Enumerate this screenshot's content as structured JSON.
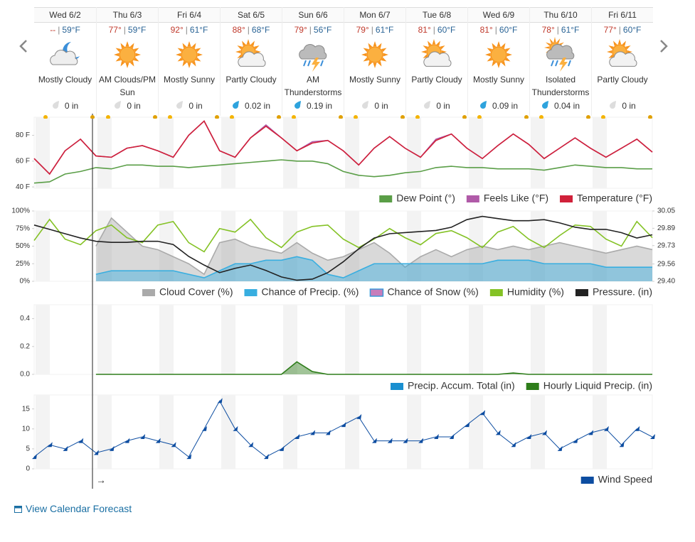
{
  "days": [
    {
      "date": "Wed 6/2",
      "hi": "--",
      "lo": "59°F",
      "condition": "Mostly Cloudy",
      "precip": "0 in"
    },
    {
      "date": "Thu 6/3",
      "hi": "77°",
      "lo": "59°F",
      "condition": "AM Clouds/PM Sun",
      "precip": "0 in"
    },
    {
      "date": "Fri 6/4",
      "hi": "92°",
      "lo": "61°F",
      "condition": "Mostly Sunny",
      "precip": "0 in"
    },
    {
      "date": "Sat 6/5",
      "hi": "88°",
      "lo": "68°F",
      "condition": "Partly Cloudy",
      "precip": "0.02 in"
    },
    {
      "date": "Sun 6/6",
      "hi": "79°",
      "lo": "56°F",
      "condition": "AM Thunderstorms",
      "precip": "0.19 in"
    },
    {
      "date": "Mon 6/7",
      "hi": "79°",
      "lo": "61°F",
      "condition": "Mostly Sunny",
      "precip": "0 in"
    },
    {
      "date": "Tue 6/8",
      "hi": "81°",
      "lo": "60°F",
      "condition": "Partly Cloudy",
      "precip": "0 in"
    },
    {
      "date": "Wed 6/9",
      "hi": "81°",
      "lo": "60°F",
      "condition": "Mostly Sunny",
      "precip": "0.09 in"
    },
    {
      "date": "Thu 6/10",
      "hi": "78°",
      "lo": "61°F",
      "condition": "Isolated Thunderstorms",
      "precip": "0.04 in"
    },
    {
      "date": "Fri 6/11",
      "hi": "77°",
      "lo": "60°F",
      "condition": "Partly Cloudy",
      "precip": "0 in"
    }
  ],
  "temp_separator": "|",
  "now_marker": "→",
  "link": "View Calendar Forecast",
  "chart_data": [
    {
      "type": "line",
      "ylim": [
        39,
        94
      ],
      "yticks": [
        {
          "value": 40,
          "label": "40 F"
        },
        {
          "value": 60,
          "label": "60 F"
        },
        {
          "value": 80,
          "label": "80 F"
        }
      ],
      "series": [
        {
          "name": "Dew Point (°)",
          "color": "#5a9e47",
          "values": [
            43,
            44,
            50,
            52,
            55,
            54,
            57,
            57,
            56,
            56,
            55,
            56,
            57,
            58,
            59,
            60,
            61,
            60,
            60,
            58,
            52,
            49,
            48,
            49,
            51,
            52,
            55,
            56,
            55,
            55,
            54,
            54,
            54,
            53,
            55,
            57,
            56,
            55,
            55,
            54,
            54
          ]
        },
        {
          "name": "Feels Like (°F)",
          "color": "#b05aa8",
          "values": [
            62,
            50,
            68,
            77,
            64,
            63,
            70,
            72,
            68,
            63,
            80,
            91,
            68,
            63,
            78,
            88,
            78,
            68,
            75,
            76,
            68,
            57,
            70,
            79,
            70,
            63,
            77,
            81,
            70,
            62,
            72,
            81,
            73,
            62,
            70,
            78,
            70,
            63,
            70,
            77,
            67
          ]
        },
        {
          "name": "Temperature (°F)",
          "color": "#d0213a",
          "values": [
            62,
            50,
            68,
            77,
            64,
            63,
            70,
            72,
            68,
            63,
            80,
            91,
            68,
            63,
            78,
            87,
            78,
            68,
            74,
            76,
            68,
            57,
            70,
            79,
            70,
            63,
            76,
            81,
            70,
            62,
            72,
            81,
            73,
            62,
            70,
            78,
            70,
            63,
            70,
            77,
            67
          ]
        }
      ]
    },
    {
      "type": "line",
      "ylim": [
        0,
        100
      ],
      "yticks": [
        {
          "value": 0,
          "label": "0%"
        },
        {
          "value": 25,
          "label": "25%"
        },
        {
          "value": 50,
          "label": "50%"
        },
        {
          "value": 75,
          "label": "75%"
        },
        {
          "value": 100,
          "label": "100%"
        }
      ],
      "y2lim": [
        29.4,
        30.05
      ],
      "y2ticks": [
        {
          "value": 29.4,
          "label": "29.40"
        },
        29.56,
        29.73,
        29.89,
        30.05
      ],
      "series": [
        {
          "name": "Cloud Cover (%)",
          "color": "#aaaaaa",
          "fill": true,
          "values": [
            null,
            null,
            null,
            null,
            50,
            90,
            70,
            50,
            45,
            35,
            25,
            10,
            55,
            60,
            50,
            45,
            40,
            55,
            40,
            30,
            35,
            45,
            55,
            40,
            20,
            35,
            45,
            35,
            45,
            50,
            45,
            50,
            45,
            50,
            55,
            50,
            45,
            40,
            45,
            50,
            45
          ]
        },
        {
          "name": "Chance of Precip. (%)",
          "color": "#38aee0",
          "fill": true,
          "values": [
            null,
            null,
            null,
            null,
            10,
            15,
            15,
            15,
            15,
            15,
            10,
            5,
            15,
            25,
            25,
            30,
            30,
            35,
            30,
            10,
            5,
            15,
            25,
            25,
            25,
            25,
            25,
            25,
            25,
            25,
            30,
            30,
            30,
            25,
            25,
            25,
            25,
            20,
            20,
            20,
            20
          ]
        },
        {
          "name": "Chance of Snow (%)",
          "color": "#c77dbb",
          "edge_color": "#3a9ad9",
          "fill": true
        },
        {
          "name": "Humidity (%)",
          "color": "#84c225",
          "values": [
            58,
            88,
            60,
            52,
            72,
            80,
            62,
            55,
            80,
            85,
            55,
            42,
            75,
            70,
            88,
            62,
            48,
            70,
            78,
            80,
            60,
            48,
            60,
            75,
            62,
            52,
            68,
            72,
            62,
            48,
            70,
            78,
            60,
            48,
            65,
            80,
            78,
            60,
            50,
            85,
            62
          ]
        },
        {
          "name": "Pressure. (in)",
          "color": "#222222",
          "axis": "y2",
          "values": [
            29.92,
            29.88,
            29.84,
            29.8,
            29.77,
            29.76,
            29.76,
            29.77,
            29.77,
            29.74,
            29.63,
            29.55,
            29.48,
            29.52,
            29.55,
            29.5,
            29.44,
            29.41,
            29.42,
            29.48,
            29.58,
            29.7,
            29.8,
            29.84,
            29.85,
            29.86,
            29.87,
            29.9,
            29.97,
            30,
            29.98,
            29.96,
            29.96,
            29.97,
            29.94,
            29.9,
            29.88,
            29.88,
            29.85,
            29.8,
            29.83
          ]
        }
      ]
    },
    {
      "type": "line",
      "ylim": [
        0,
        0.5
      ],
      "yticks": [
        {
          "value": 0,
          "label": "0.0"
        },
        0.2,
        0.4
      ],
      "series": [
        {
          "name": "Precip. Accum. Total (in)",
          "color": "#1a8fd0"
        },
        {
          "name": "Hourly Liquid Precip. (in)",
          "color": "#2e7d1a",
          "fill": true,
          "values": [
            null,
            null,
            null,
            null,
            0,
            0,
            0,
            0,
            0,
            0,
            0,
            0,
            0,
            0,
            0,
            0,
            0,
            0.09,
            0.02,
            0,
            0,
            0,
            0,
            0,
            0,
            0,
            0,
            0,
            0,
            0,
            0,
            0.01,
            0,
            0,
            0,
            0,
            0,
            0,
            0,
            0,
            0
          ]
        }
      ]
    },
    {
      "type": "line",
      "ylim": [
        0,
        18.5
      ],
      "yticks": [
        0,
        5,
        10,
        15
      ],
      "series": [
        {
          "name": "Wind Speed",
          "color": "#0d4da1",
          "markers": true,
          "values": [
            3,
            6,
            5,
            7,
            4,
            5,
            7,
            8,
            7,
            6,
            3,
            10,
            17,
            10,
            6,
            3,
            5,
            8,
            9,
            9,
            11,
            13,
            7,
            7,
            7,
            7,
            8,
            8,
            11,
            14,
            9,
            6,
            8,
            9,
            5,
            7,
            9,
            10,
            6,
            10,
            8
          ]
        }
      ]
    }
  ]
}
